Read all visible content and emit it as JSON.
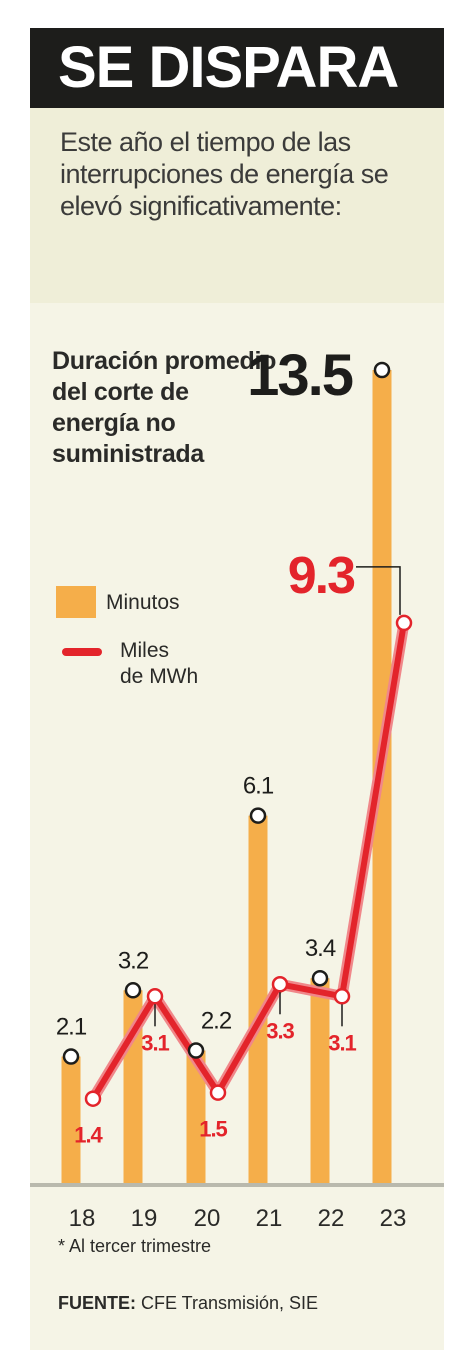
{
  "header": {
    "title": "SE DISPARA",
    "subtitle": "Este año el tiempo de las interrupciones de energía se elevó significativamente:"
  },
  "chart_data": {
    "type": "bar",
    "title": "Duración promedio del corte de energía no suministrada",
    "categories": [
      "18",
      "19",
      "20",
      "21",
      "22",
      "23"
    ],
    "series": [
      {
        "name": "Minutos",
        "type": "bar",
        "color": "#f5ae4a",
        "values": [
          2.1,
          3.2,
          2.2,
          6.1,
          3.4,
          13.5
        ]
      },
      {
        "name": "Miles de MWh",
        "type": "line",
        "color": "#e3242b",
        "values": [
          1.4,
          3.1,
          1.5,
          3.3,
          3.1,
          9.3
        ]
      }
    ],
    "ylim": [
      0,
      14.5
    ],
    "grid": false,
    "legend": "left"
  },
  "legend": {
    "bars_label": "Minutos",
    "line_label": "Miles de MWh"
  },
  "footer": {
    "note": "* Al tercer trimestre",
    "source_label": "FUENTE:",
    "source_text": " CFE Transmisión, SIE"
  },
  "colors": {
    "header_bg": "#1d1d1b",
    "panel_bg": "#efeed8",
    "bar": "#f5ae4a",
    "line": "#e3242b",
    "line_light": "#f0878a"
  }
}
